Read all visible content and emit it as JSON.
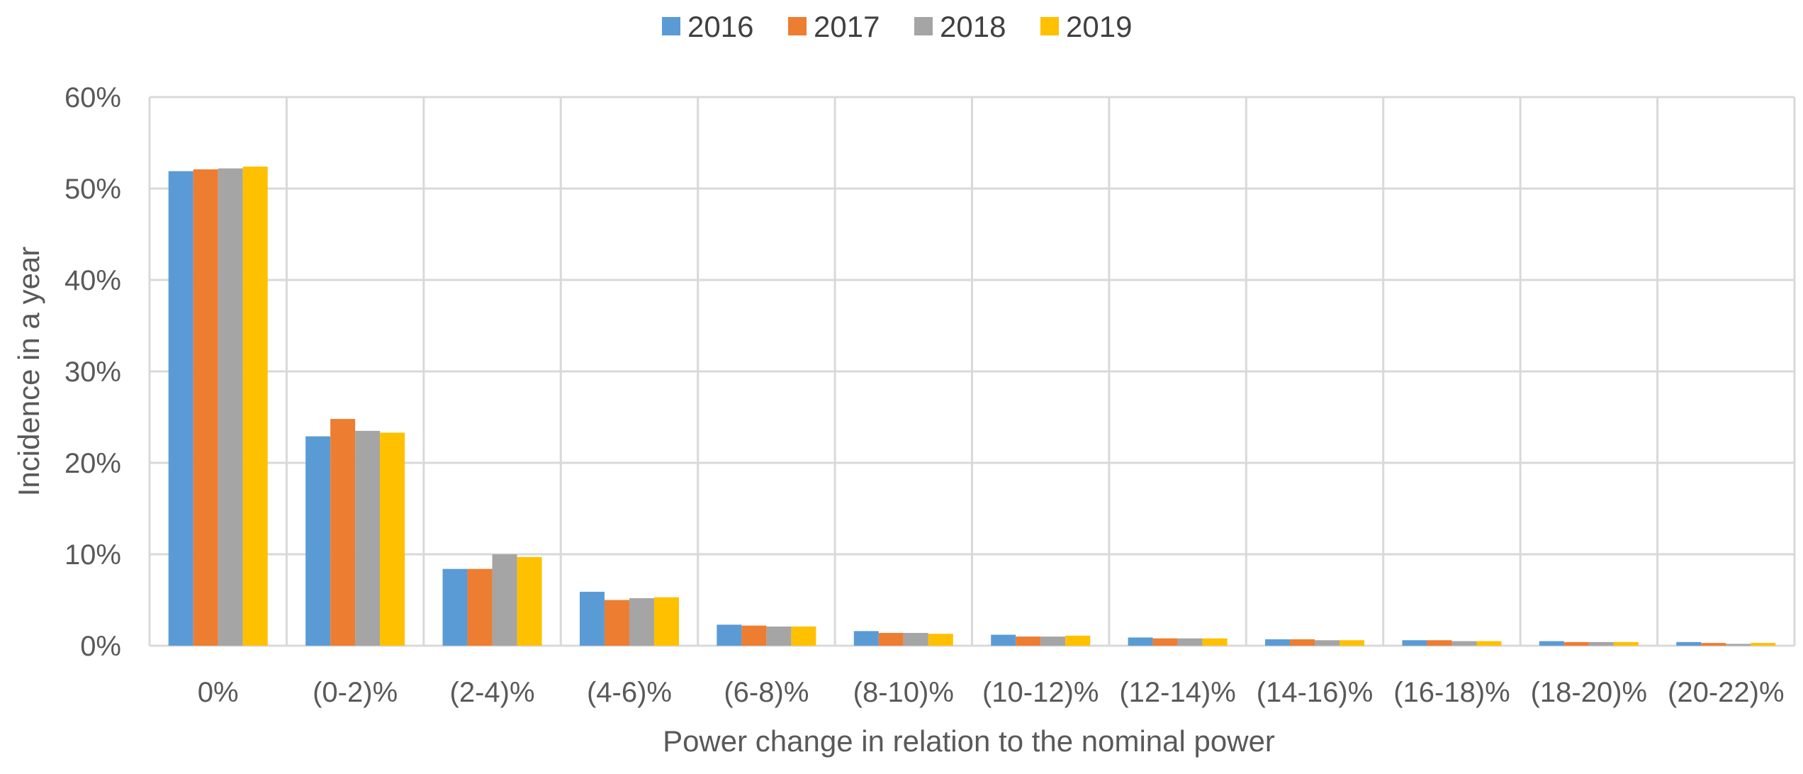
{
  "chart_data": {
    "type": "bar",
    "categories": [
      "0%",
      "(0-2)%",
      "(2-4)%",
      "(4-6)%",
      "(6-8)%",
      "(8-10)%",
      "(10-12)%",
      "(12-14)%",
      "(14-16)%",
      "(16-18)%",
      "(18-20)%",
      "(20-22)%"
    ],
    "series": [
      {
        "name": "2016",
        "color": "#5B9BD5",
        "values": [
          51.9,
          22.9,
          8.4,
          5.9,
          2.3,
          1.6,
          1.2,
          0.9,
          0.7,
          0.6,
          0.5,
          0.4
        ]
      },
      {
        "name": "2017",
        "color": "#ED7D31",
        "values": [
          52.1,
          24.8,
          8.4,
          5.0,
          2.2,
          1.4,
          1.0,
          0.8,
          0.7,
          0.6,
          0.4,
          0.3
        ]
      },
      {
        "name": "2018",
        "color": "#A5A5A5",
        "values": [
          52.2,
          23.5,
          10.0,
          5.2,
          2.1,
          1.4,
          1.0,
          0.8,
          0.6,
          0.5,
          0.4,
          0.2
        ]
      },
      {
        "name": "2019",
        "color": "#FFC000",
        "values": [
          52.4,
          23.3,
          9.7,
          5.3,
          2.1,
          1.3,
          1.1,
          0.8,
          0.6,
          0.5,
          0.4,
          0.3
        ]
      }
    ],
    "title": "",
    "xlabel": "Power change in relation to the nominal power",
    "ylabel": "Incidence in a year",
    "ylim": [
      0,
      60
    ],
    "yticks": [
      "0%",
      "10%",
      "20%",
      "30%",
      "40%",
      "50%",
      "60%"
    ],
    "grid": "on",
    "legend": "top-center"
  }
}
